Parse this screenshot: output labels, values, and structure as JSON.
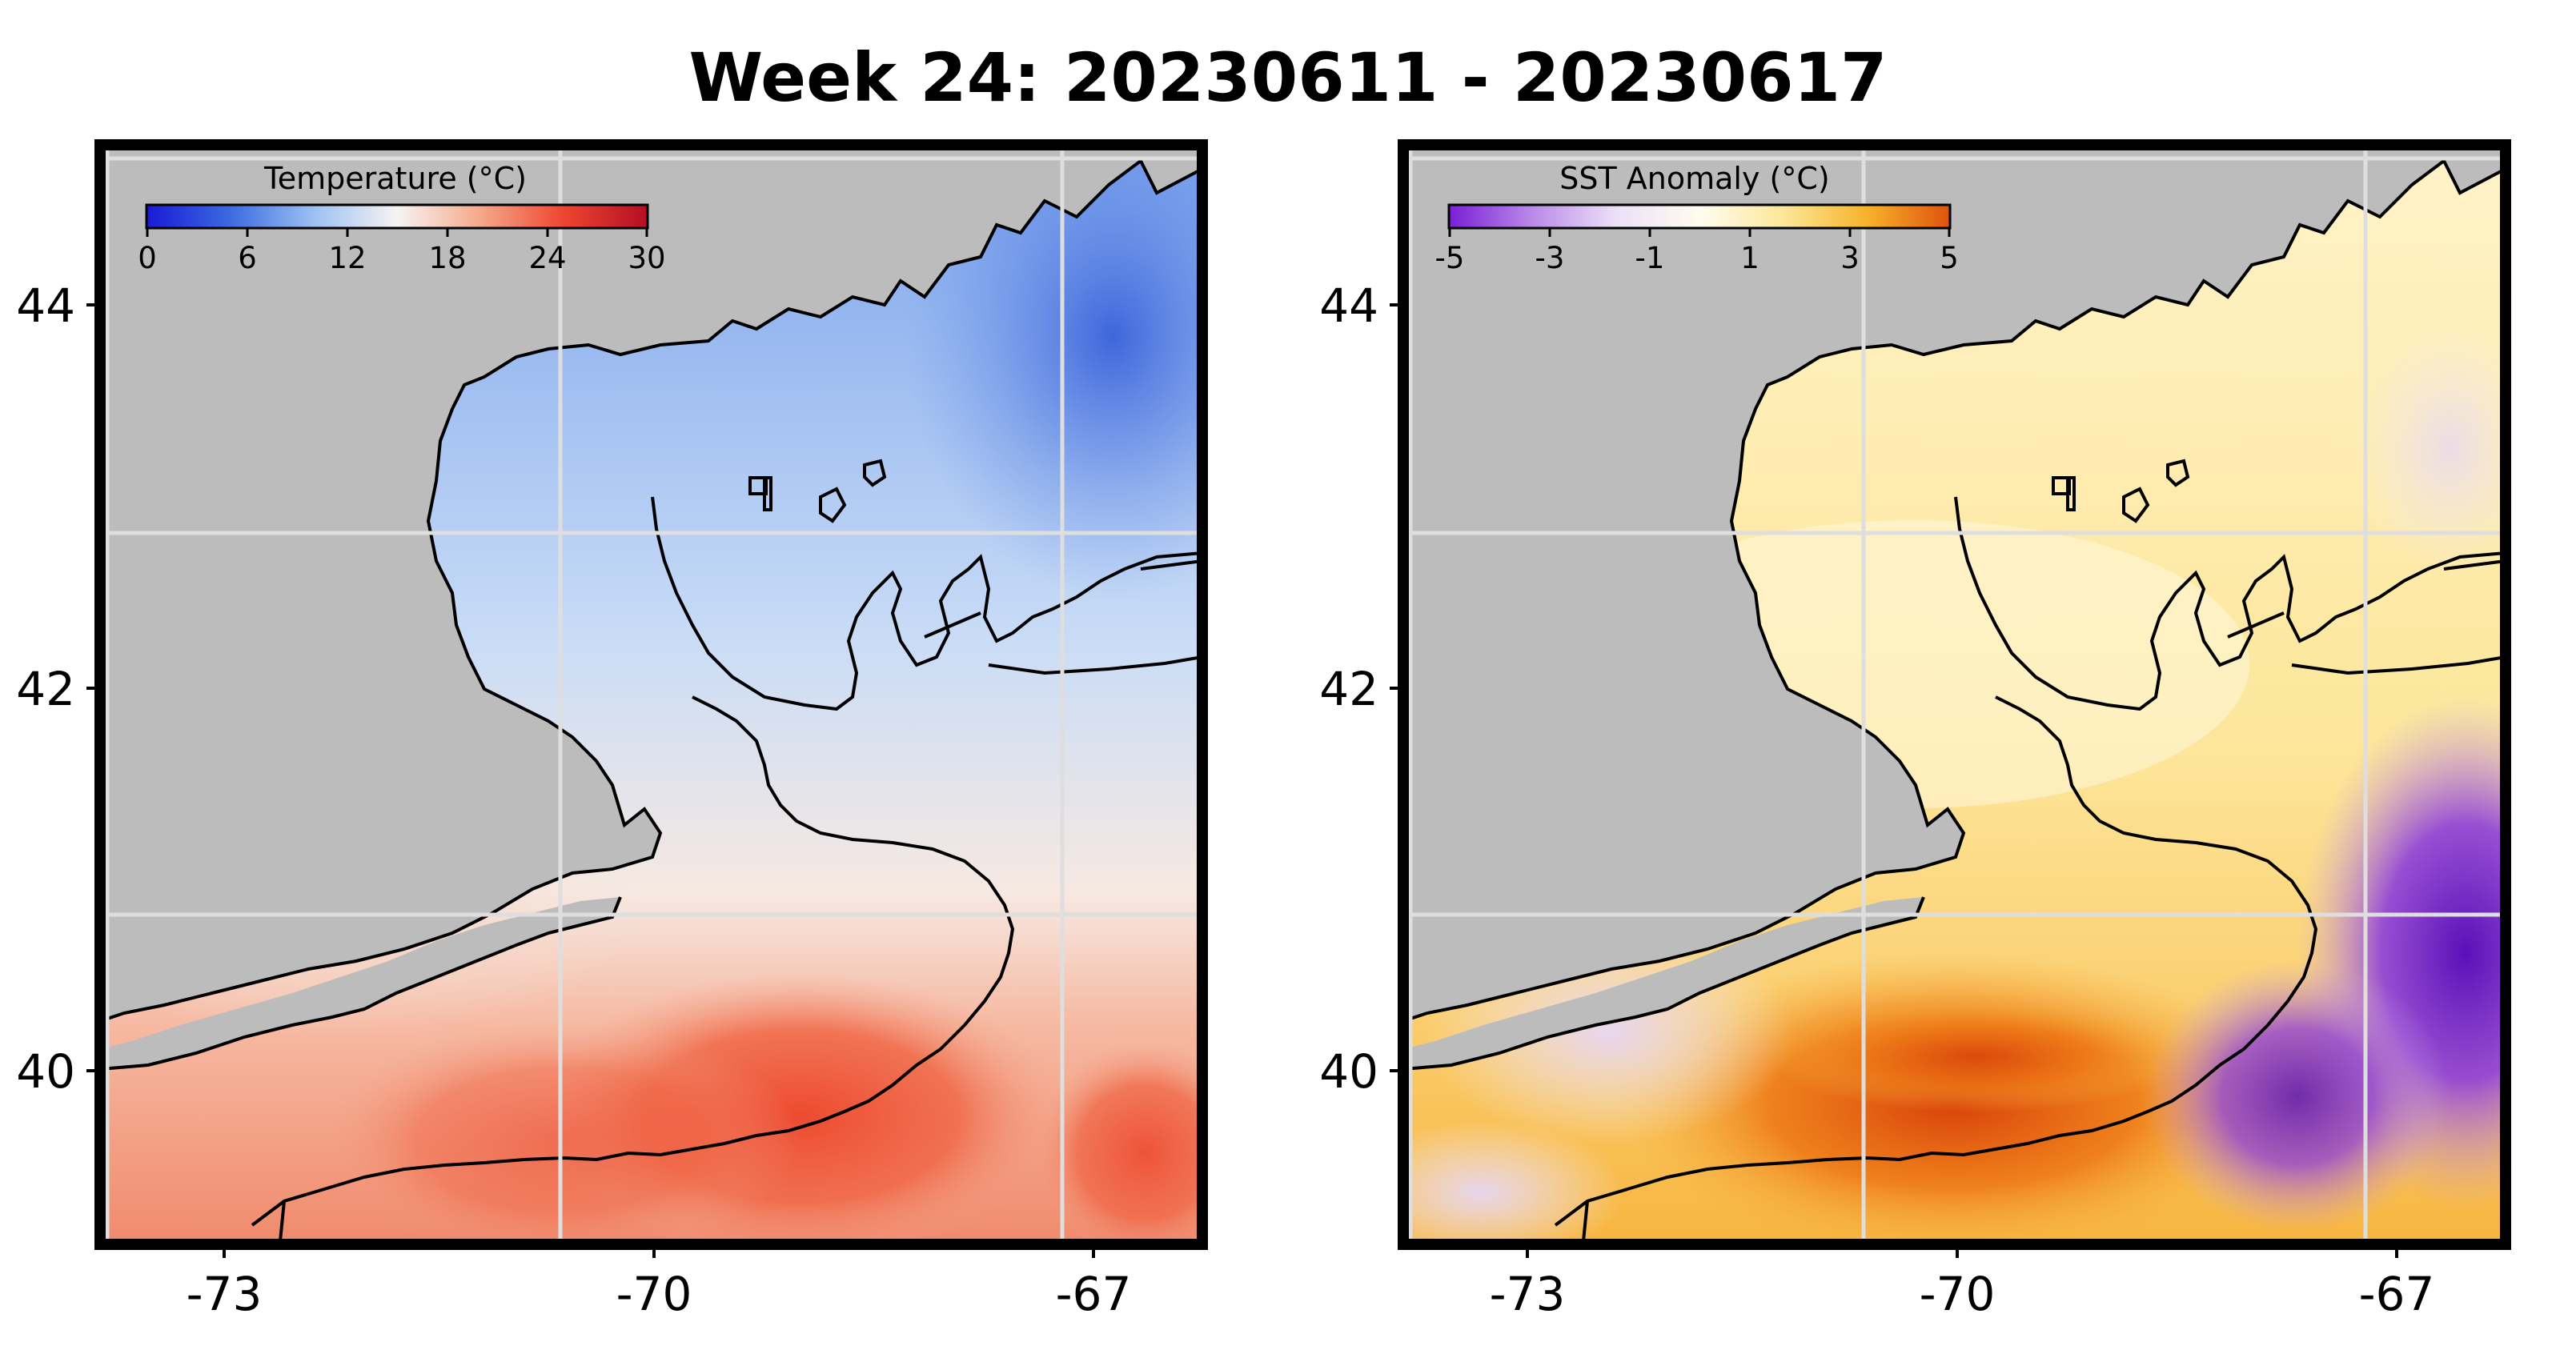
{
  "title": "Week 24: 20230611 - 20230617",
  "panels": [
    {
      "id": "temperature",
      "colorbar": {
        "label": "Temperature (°C)",
        "ticks": [
          "0",
          "6",
          "12",
          "18",
          "24",
          "30"
        ],
        "range": [
          0,
          30
        ],
        "colors": [
          "#1a1ad6",
          "#3b6be0",
          "#9cc0f2",
          "#f6f4f2",
          "#f5a88a",
          "#ee4530",
          "#b30f25"
        ]
      }
    },
    {
      "id": "anomaly",
      "colorbar": {
        "label": "SST Anomaly (°C)",
        "ticks": [
          "-5",
          "-3",
          "-1",
          "1",
          "3",
          "5"
        ],
        "range": [
          -5,
          5
        ],
        "colors": [
          "#7a1fd6",
          "#b98ae8",
          "#ece0f8",
          "#fffcef",
          "#fde79a",
          "#f7b32b",
          "#e0520c"
        ]
      }
    }
  ],
  "axes": {
    "y_ticks": [
      "44",
      "42",
      "40"
    ],
    "x_ticks": [
      "-73",
      "-70",
      "-67"
    ]
  },
  "colors": {
    "land": "#bcbcbc",
    "grid": "#dedede",
    "frame": "#000000"
  }
}
